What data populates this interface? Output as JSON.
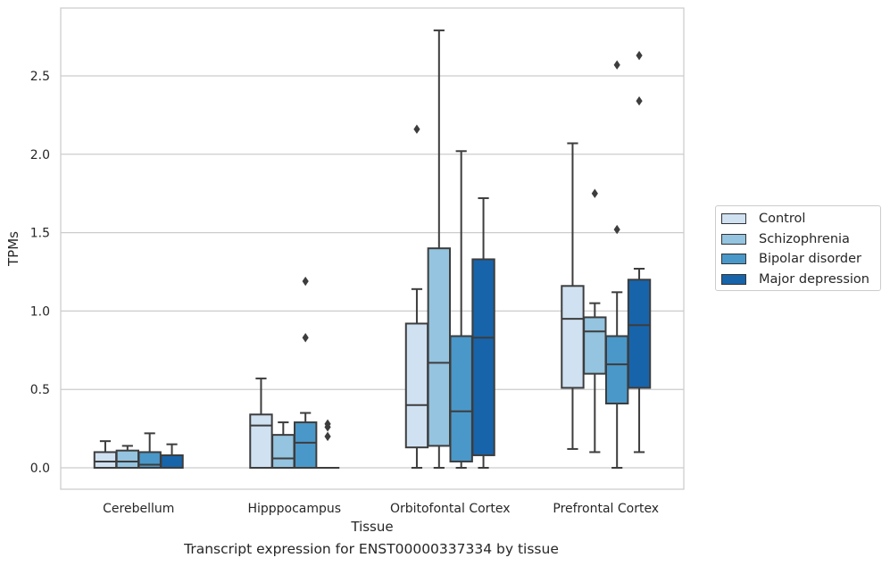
{
  "caption": "Transcript expression for ENST00000337334 by tissue",
  "chart_data": {
    "type": "box",
    "xlabel": "Tissue",
    "ylabel": "TPMs",
    "ylim": [
      -0.135,
      2.95
    ],
    "yticks": [
      0.0,
      0.5,
      1.0,
      1.5,
      2.0,
      2.5
    ],
    "ytick_labels": [
      "0.0",
      "0.5",
      "1.0",
      "1.5",
      "2.0",
      "2.5"
    ],
    "grid": "horizontal",
    "legend_position": "right",
    "categories": [
      "Cerebellum",
      "Hipppocampus",
      "Orbitofontal Cortex",
      "Prefrontal Cortex"
    ],
    "series": [
      {
        "name": "Control",
        "color": "#d0e1f2",
        "boxes": [
          {
            "whislo": 0.0,
            "q1": 0.0,
            "med": 0.04,
            "q3": 0.1,
            "whishi": 0.17,
            "fliers": []
          },
          {
            "whislo": 0.0,
            "q1": 0.0,
            "med": 0.27,
            "q3": 0.34,
            "whishi": 0.57,
            "fliers": []
          },
          {
            "whislo": 0.0,
            "q1": 0.13,
            "med": 0.4,
            "q3": 0.92,
            "whishi": 1.14,
            "fliers": [
              2.16
            ]
          },
          {
            "whislo": 0.12,
            "q1": 0.51,
            "med": 0.95,
            "q3": 1.16,
            "whishi": 2.07,
            "fliers": []
          }
        ]
      },
      {
        "name": "Schizophrenia",
        "color": "#94c4df",
        "boxes": [
          {
            "whislo": 0.0,
            "q1": 0.0,
            "med": 0.04,
            "q3": 0.11,
            "whishi": 0.14,
            "fliers": []
          },
          {
            "whislo": 0.0,
            "q1": 0.0,
            "med": 0.06,
            "q3": 0.21,
            "whishi": 0.29,
            "fliers": []
          },
          {
            "whislo": 0.0,
            "q1": 0.14,
            "med": 0.67,
            "q3": 1.4,
            "whishi": 2.79,
            "fliers": []
          },
          {
            "whislo": 0.1,
            "q1": 0.6,
            "med": 0.87,
            "q3": 0.96,
            "whishi": 1.05,
            "fliers": [
              1.75
            ]
          }
        ]
      },
      {
        "name": "Bipolar disorder",
        "color": "#4a98c9",
        "boxes": [
          {
            "whislo": 0.0,
            "q1": 0.0,
            "med": 0.02,
            "q3": 0.1,
            "whishi": 0.22,
            "fliers": []
          },
          {
            "whislo": 0.0,
            "q1": 0.0,
            "med": 0.16,
            "q3": 0.29,
            "whishi": 0.35,
            "fliers": [
              1.19,
              0.83
            ]
          },
          {
            "whislo": 0.0,
            "q1": 0.04,
            "med": 0.36,
            "q3": 0.84,
            "whishi": 2.02,
            "fliers": []
          },
          {
            "whislo": 0.0,
            "q1": 0.41,
            "med": 0.66,
            "q3": 0.84,
            "whishi": 1.12,
            "fliers": [
              2.57,
              1.52
            ]
          }
        ]
      },
      {
        "name": "Major depression",
        "color": "#1764ab",
        "boxes": [
          {
            "whislo": 0.0,
            "q1": 0.0,
            "med": 0.0,
            "q3": 0.08,
            "whishi": 0.15,
            "fliers": []
          },
          {
            "whislo": 0.0,
            "q1": 0.0,
            "med": 0.0,
            "q3": 0.0,
            "whishi": 0.0,
            "fliers": [
              0.28,
              0.26,
              0.2
            ]
          },
          {
            "whislo": 0.0,
            "q1": 0.08,
            "med": 0.83,
            "q3": 1.33,
            "whishi": 1.72,
            "fliers": []
          },
          {
            "whislo": 0.1,
            "q1": 0.51,
            "med": 0.91,
            "q3": 1.2,
            "whishi": 1.27,
            "fliers": [
              2.63,
              2.34
            ]
          }
        ]
      }
    ]
  }
}
